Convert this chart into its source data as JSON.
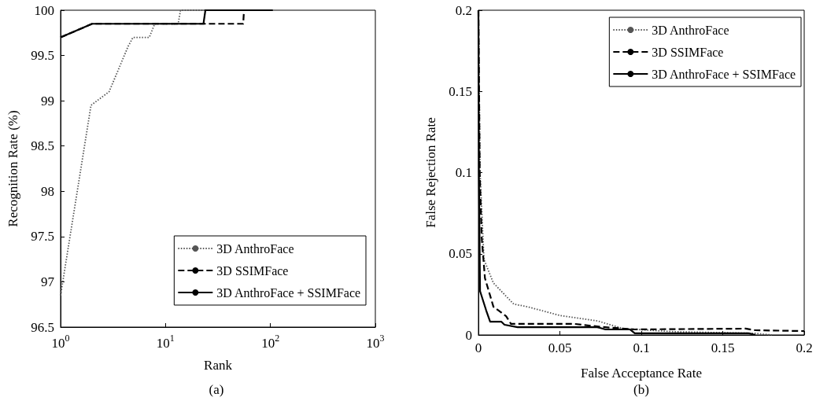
{
  "chart_data": [
    {
      "type": "line",
      "xlabel": "Rank",
      "ylabel": "Recognition Rate (%)",
      "annotations": [
        "(a)"
      ],
      "log": "x",
      "legend": "bottom right",
      "xlim": [
        1,
        1000
      ],
      "xticks": [
        {
          "value": 1,
          "label": "10$^{0}$"
        },
        {
          "value": 10,
          "label": "10$^{1}$"
        },
        {
          "value": 100,
          "label": "10$^{2}$"
        },
        {
          "value": 1000,
          "label": "10$^{3}$"
        }
      ],
      "ylim": [
        96.5,
        100
      ],
      "yticks": [
        96.5,
        97,
        97.5,
        98,
        98.5,
        99,
        99.5,
        100
      ],
      "series": [
        {
          "name": "3D AnthroFace",
          "color": "#555555",
          "line_style": "dotted",
          "x": [
            1,
            1.95,
            2.9,
            4.4,
            4.9,
            7,
            7.9,
            13.2,
            13.9,
            105
          ],
          "values": [
            96.85,
            98.95,
            99.1,
            99.6,
            99.7,
            99.7,
            99.85,
            99.85,
            100,
            100
          ]
        },
        {
          "name": "3D SSIMFace",
          "color": "#000000",
          "line_style": "dashed",
          "x": [
            1,
            2,
            23,
            55,
            56,
            105
          ],
          "values": [
            99.7,
            99.85,
            99.85,
            99.85,
            100,
            100
          ]
        },
        {
          "name": "3D AnthroFace + SSIMFace",
          "color": "#000000",
          "line_style": "solid",
          "x": [
            1,
            2,
            23,
            24,
            105
          ],
          "values": [
            99.7,
            99.85,
            99.85,
            100,
            100
          ]
        }
      ]
    },
    {
      "type": "line",
      "xlabel": "False Acceptance Rate",
      "ylabel": "False Rejection Rate",
      "annotations": [
        "(b)"
      ],
      "legend": "top right",
      "xlim": [
        0,
        0.2
      ],
      "xticks": [
        0,
        0.05,
        0.1,
        0.15,
        0.2
      ],
      "ylim": [
        0,
        0.2
      ],
      "yticks": [
        0,
        0.05,
        0.1,
        0.15,
        0.2
      ],
      "series": [
        {
          "name": "3D AnthroFace",
          "color": "#555555",
          "line_style": "dotted",
          "x": [
            0,
            0.001,
            0.0034,
            0.0092,
            0.0217,
            0.03,
            0.05,
            0.073,
            0.089,
            0.12,
            0.17,
            0.18
          ],
          "values": [
            0.2,
            0.1,
            0.0465,
            0.032,
            0.019,
            0.0174,
            0.012,
            0.0087,
            0.0039,
            0.002,
            0.001,
            0
          ]
        },
        {
          "name": "3D SSIMFace",
          "color": "#000000",
          "line_style": "dashed",
          "x": [
            0,
            0.0008,
            0.002,
            0.004,
            0.0092,
            0.017,
            0.02,
            0.059,
            0.075,
            0.096,
            0.164,
            0.17,
            0.2
          ],
          "values": [
            0.2,
            0.1,
            0.06,
            0.035,
            0.0174,
            0.0116,
            0.0068,
            0.0068,
            0.005,
            0.0034,
            0.0039,
            0.0029,
            0.0024
          ]
        },
        {
          "name": "3D AnthroFace + SSIMFace",
          "color": "#000000",
          "line_style": "solid",
          "x": [
            0,
            0.0003,
            0.001,
            0.0048,
            0.0072,
            0.014,
            0.016,
            0.024,
            0.073,
            0.078,
            0.093,
            0.096,
            0.166,
            0.17
          ],
          "values": [
            0.2,
            0.1,
            0.027,
            0.015,
            0.0082,
            0.0082,
            0.0063,
            0.0048,
            0.0048,
            0.0034,
            0.0034,
            0.001,
            0.001,
            0
          ]
        }
      ]
    }
  ]
}
